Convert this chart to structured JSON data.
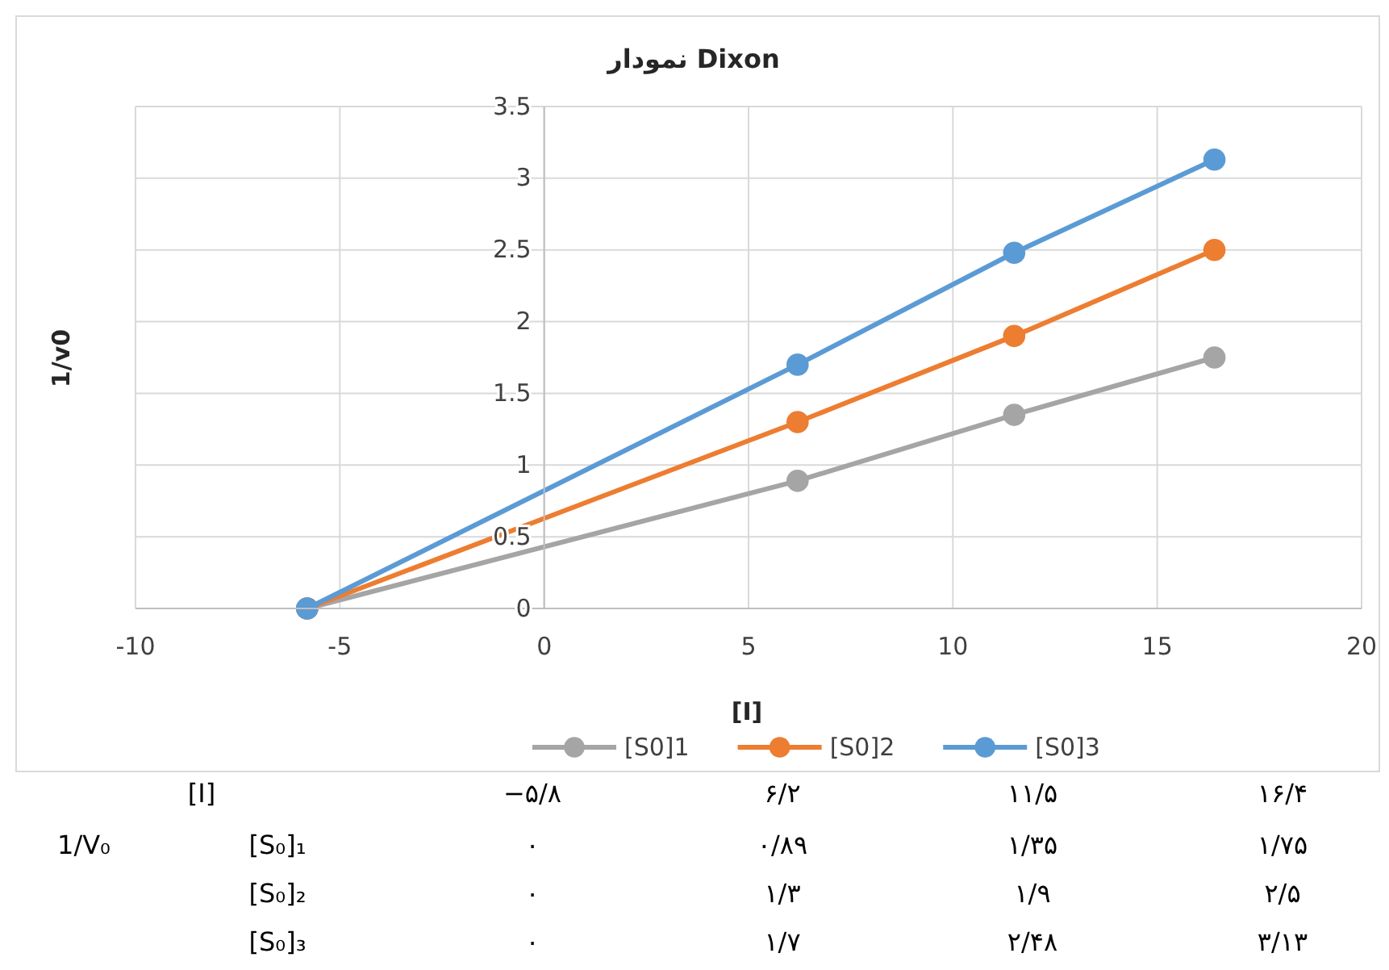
{
  "chart_data": {
    "type": "line",
    "title": "نمودار Dixon",
    "xlabel": "[I]",
    "ylabel": "1/v0",
    "x": [
      -5.8,
      6.2,
      11.5,
      16.4
    ],
    "series": [
      {
        "name": "[S0]1",
        "color": "#a5a5a5",
        "values": [
          0,
          0.89,
          1.35,
          1.75
        ]
      },
      {
        "name": "[S0]2",
        "color": "#ed7d31",
        "values": [
          0,
          1.3,
          1.9,
          2.5
        ]
      },
      {
        "name": "[S0]3",
        "color": "#5b9bd5",
        "values": [
          0,
          1.7,
          2.48,
          3.13
        ]
      }
    ],
    "xlim": [
      -10,
      20
    ],
    "xticks": [
      -10,
      -5,
      0,
      5,
      10,
      15,
      20
    ],
    "ylim": [
      0,
      3.5
    ],
    "yticks": [
      0,
      0.5,
      1,
      1.5,
      2,
      2.5,
      3,
      3.5
    ],
    "grid": true,
    "legend": "bottom",
    "marker": "circle",
    "line_style": "solid",
    "annotations": [
      "[I]",
      "−۵/۸",
      "۶/۲",
      "۱۱/۵",
      "۱۶/۴",
      "1/V₀",
      "[S₀]₁",
      "۰",
      "۰/۸۹",
      "۱/۳۵",
      "۱/۷۵",
      "[S₀]₂",
      "۰",
      "۱/۳",
      "۱/۹",
      "۲/۵",
      "[S₀]₃",
      "۰",
      "۱/۷",
      "۲/۴۸",
      "۳/۱۳"
    ]
  }
}
